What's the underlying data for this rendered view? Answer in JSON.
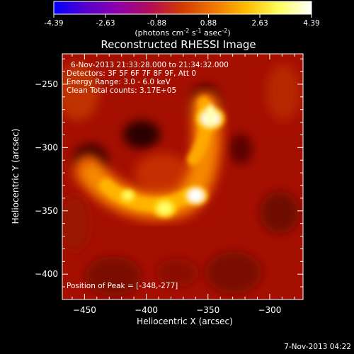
{
  "chart_data": {
    "type": "heatmap",
    "title": "Reconstructed RHESSI Image",
    "xlabel": "Heliocentric X (arcsec)",
    "ylabel": "Heliocentric Y (arcsec)",
    "xlim": [
      -468,
      -273
    ],
    "ylim": [
      -420,
      -226
    ],
    "x_ticks": [
      -450,
      -400,
      -350,
      -300
    ],
    "y_ticks": [
      -250,
      -300,
      -350,
      -400
    ],
    "colorbar": {
      "min": -4.39,
      "max": 4.39,
      "ticks": [
        "-4.39",
        "-2.63",
        "-0.88",
        "0.88",
        "2.63",
        "4.39"
      ],
      "units_label_parts": [
        "(photons cm",
        "-2",
        " s",
        "-1",
        " asec",
        "-2",
        ")"
      ],
      "colormap": [
        "#0000ff",
        "#5500cc",
        "#8f00aa",
        "#b20d55",
        "#d23a00",
        "#f07800",
        "#ffbe00",
        "#ffff60",
        "#ffffff"
      ]
    },
    "annotations": [
      "6-Nov-2013 21:33:28.000 to 21:34:32.000",
      "Detectors: 3F 5F 6F 7F 8F 9F, Att 0",
      "Energy Range: 3.0 - 6.0 keV",
      "Clean    Total counts: 3.17E+05"
    ],
    "peak_label": "Position of Peak = [-348,-277]",
    "sources": [
      {
        "x": -348,
        "y": -277,
        "value": 4.39
      },
      {
        "x": -360,
        "y": -338,
        "value": 3.9
      },
      {
        "x": -385,
        "y": -348,
        "value": 3.8
      },
      {
        "x": -415,
        "y": -338,
        "value": 2.9
      }
    ],
    "timestamp": "7-Nov-2013 04:22"
  }
}
